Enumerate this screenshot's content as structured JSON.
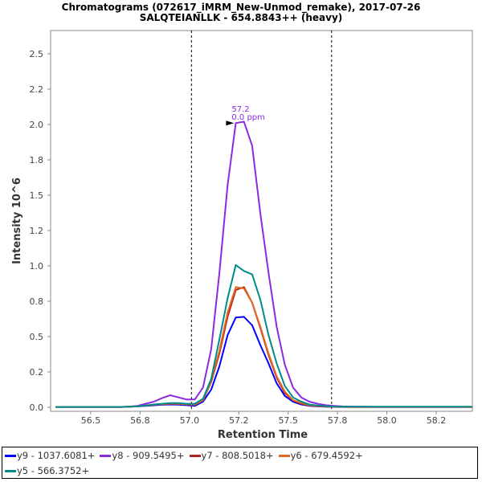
{
  "chart_data": {
    "type": "line",
    "title": "Chromatograms (072617_iMRM_New-Unmod_remake), 2017-07-26",
    "subtitle": "SALQTEIANLLK - 654.8843++ (heavy)",
    "xlabel": "Retention Time",
    "ylabel": "Intensity 10^6",
    "xlim": [
      56.3,
      58.43
    ],
    "ylim": [
      0,
      2.7
    ],
    "xticks": [
      56.5,
      56.75,
      57.0,
      57.25,
      57.5,
      57.75,
      58.0,
      58.25
    ],
    "xtick_labels": [
      "56.5",
      "56.8",
      "57.0",
      "57.2",
      "57.5",
      "57.8",
      "58.0",
      "58.2"
    ],
    "yticks": [
      0,
      0.25,
      0.5,
      0.75,
      1.0,
      1.25,
      1.5,
      1.75,
      2.0,
      2.25,
      2.5
    ],
    "ytick_labels": [
      "0.0",
      "0.2",
      "0.5",
      "0.8",
      "1.0",
      "1.2",
      "1.5",
      "1.8",
      "2.0",
      "2.2",
      "2.5"
    ],
    "integration_bounds": [
      57.01,
      57.72
    ],
    "annotation": {
      "rt": "57.2",
      "ppm": "0.0 ppm",
      "series": "y8",
      "x": 57.23,
      "y": 2.01
    },
    "x_start": 56.3215,
    "x_step": 0.0415,
    "series": [
      {
        "name": "y9 - 1037.6081+",
        "color": "#0000ff",
        "values": [
          0.002,
          0.002,
          0.002,
          0.002,
          0.002,
          0.002,
          0.002,
          0.002,
          0.002,
          0.004,
          0.006,
          0.01,
          0.014,
          0.018,
          0.02,
          0.018,
          0.015,
          0.01,
          0.04,
          0.125,
          0.29,
          0.51,
          0.635,
          0.64,
          0.58,
          0.44,
          0.31,
          0.17,
          0.08,
          0.04,
          0.02,
          0.01,
          0.006,
          0.004,
          0.003,
          0.002,
          0.002,
          0.002,
          0.002,
          0.002,
          0.002,
          0.002,
          0.002,
          0.002,
          0.002,
          0.002,
          0.002,
          0.002,
          0.002,
          0.002,
          0.002,
          0.002
        ]
      },
      {
        "name": "y8 - 909.5495+",
        "color": "#8a2be2",
        "values": [
          0.003,
          0.003,
          0.003,
          0.003,
          0.003,
          0.003,
          0.003,
          0.003,
          0.003,
          0.005,
          0.01,
          0.025,
          0.04,
          0.065,
          0.085,
          0.07,
          0.055,
          0.055,
          0.14,
          0.41,
          0.95,
          1.57,
          2.01,
          2.02,
          1.85,
          1.37,
          0.95,
          0.57,
          0.3,
          0.14,
          0.07,
          0.04,
          0.025,
          0.015,
          0.01,
          0.006,
          0.005,
          0.004,
          0.004,
          0.003,
          0.003,
          0.003,
          0.003,
          0.003,
          0.003,
          0.003,
          0.003,
          0.003,
          0.003,
          0.003,
          0.003,
          0.003
        ]
      },
      {
        "name": "y7 - 808.5018+",
        "color": "#b22222",
        "values": [
          0.002,
          0.002,
          0.002,
          0.002,
          0.002,
          0.002,
          0.002,
          0.002,
          0.002,
          0.004,
          0.007,
          0.012,
          0.018,
          0.022,
          0.025,
          0.024,
          0.02,
          0.018,
          0.05,
          0.18,
          0.38,
          0.64,
          0.83,
          0.85,
          0.74,
          0.56,
          0.37,
          0.21,
          0.1,
          0.05,
          0.025,
          0.014,
          0.008,
          0.005,
          0.004,
          0.003,
          0.002,
          0.002,
          0.002,
          0.002,
          0.002,
          0.002,
          0.002,
          0.002,
          0.002,
          0.002,
          0.002,
          0.002,
          0.002,
          0.002,
          0.002,
          0.002
        ]
      },
      {
        "name": "y6 - 679.4592+",
        "color": "#e2691e",
        "values": [
          0.002,
          0.002,
          0.002,
          0.002,
          0.002,
          0.002,
          0.002,
          0.002,
          0.002,
          0.004,
          0.007,
          0.012,
          0.018,
          0.023,
          0.026,
          0.025,
          0.021,
          0.019,
          0.05,
          0.19,
          0.4,
          0.67,
          0.85,
          0.84,
          0.74,
          0.57,
          0.38,
          0.22,
          0.11,
          0.05,
          0.03,
          0.015,
          0.01,
          0.006,
          0.004,
          0.003,
          0.002,
          0.002,
          0.002,
          0.002,
          0.002,
          0.002,
          0.002,
          0.002,
          0.002,
          0.002,
          0.002,
          0.002,
          0.002,
          0.002,
          0.002,
          0.002
        ]
      },
      {
        "name": "y5 - 566.3752+",
        "color": "#008b8b",
        "values": [
          0.002,
          0.002,
          0.002,
          0.002,
          0.002,
          0.002,
          0.002,
          0.002,
          0.002,
          0.004,
          0.007,
          0.012,
          0.02,
          0.025,
          0.03,
          0.03,
          0.025,
          0.025,
          0.06,
          0.2,
          0.48,
          0.77,
          1.006,
          0.964,
          0.94,
          0.76,
          0.51,
          0.31,
          0.15,
          0.07,
          0.04,
          0.02,
          0.012,
          0.008,
          0.005,
          0.004,
          0.004,
          0.004,
          0.004,
          0.004,
          0.004,
          0.004,
          0.004,
          0.004,
          0.004,
          0.004,
          0.004,
          0.004,
          0.004,
          0.004,
          0.004,
          0.004
        ]
      }
    ],
    "legend_position": "bottom"
  }
}
